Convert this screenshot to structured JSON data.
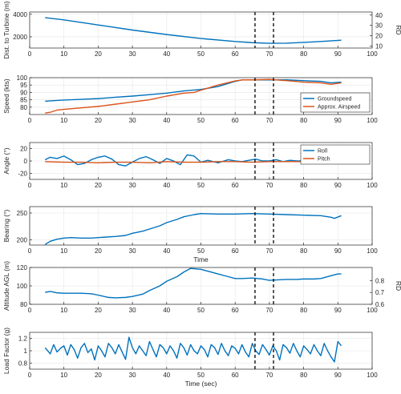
{
  "colors": {
    "series1": "#0072BD",
    "series2": "#D95319",
    "marker": "#000000",
    "grid": "#E6E6E6",
    "axes": "#262626"
  },
  "chart_data": [
    {
      "type": "line",
      "ylabel": "Dist. to Turbine (m)",
      "y2label": "RD",
      "xlim": [
        0,
        100
      ],
      "ylim": [
        1000,
        4200
      ],
      "y2lim": [
        8,
        43
      ],
      "xticks": [
        0,
        10,
        20,
        30,
        40,
        50,
        60,
        70,
        80,
        90,
        100
      ],
      "yticks": [
        2000,
        4000
      ],
      "y2ticks": [
        10,
        20,
        30,
        40
      ],
      "grid": true,
      "vlines": [
        65.8,
        71.2
      ],
      "series": [
        {
          "x": [
            4.5,
            10,
            20,
            30,
            40,
            50,
            60,
            65,
            70,
            75,
            80,
            85,
            91
          ],
          "y": [
            3700,
            3500,
            3050,
            2600,
            2200,
            1850,
            1580,
            1480,
            1420,
            1430,
            1500,
            1580,
            1700
          ]
        }
      ]
    },
    {
      "type": "line",
      "ylabel": "Speed (kts)",
      "xlim": [
        0,
        100
      ],
      "ylim": [
        75,
        100
      ],
      "xticks": [
        0,
        10,
        20,
        30,
        40,
        50,
        60,
        70,
        80,
        90,
        100
      ],
      "yticks": [
        80,
        85,
        90,
        95,
        100
      ],
      "grid": true,
      "legend": "bottom-right",
      "vlines": [
        65.8,
        71.2
      ],
      "series": [
        {
          "name": "Groundspeed",
          "x": [
            4.5,
            6,
            10,
            15,
            20,
            25,
            30,
            35,
            40,
            45,
            50,
            55,
            60,
            62,
            65,
            70,
            75,
            80,
            85,
            88,
            91
          ],
          "y": [
            84,
            84.3,
            84.8,
            85.3,
            85.8,
            86.7,
            87.5,
            88.5,
            89.5,
            91,
            92,
            94,
            97.5,
            98.5,
            98.5,
            98.5,
            98.5,
            98,
            97.5,
            96.5,
            97
          ]
        },
        {
          "name": "Approx. Airspeed",
          "x": [
            4.5,
            6,
            8,
            10,
            15,
            20,
            25,
            30,
            35,
            40,
            45,
            48,
            50,
            55,
            60,
            62,
            65,
            70,
            75,
            80,
            85,
            88,
            91
          ],
          "y": [
            76,
            76.5,
            78,
            78.5,
            79.5,
            80.5,
            82,
            83.5,
            85,
            87.5,
            89.5,
            90,
            91.5,
            95,
            97.8,
            98.5,
            98.5,
            98.8,
            98,
            97,
            96.5,
            95.5,
            96.5
          ]
        }
      ]
    },
    {
      "type": "line",
      "ylabel": "Angle (°)",
      "xlim": [
        0,
        100
      ],
      "ylim": [
        -30,
        30
      ],
      "xticks": [
        0,
        10,
        20,
        30,
        40,
        50,
        60,
        70,
        80,
        90,
        100
      ],
      "yticks": [
        -20,
        0,
        20
      ],
      "grid": true,
      "legend": "top-right",
      "vlines": [
        65.8,
        71.2
      ],
      "series": [
        {
          "name": "Roll",
          "x": [
            4.5,
            6,
            8,
            10,
            12,
            14,
            16,
            18,
            20,
            22,
            24,
            26,
            28,
            30,
            32,
            34,
            36,
            38,
            40,
            42,
            44,
            46,
            48,
            50,
            52,
            55,
            58,
            60,
            62,
            64,
            66,
            68,
            70,
            72,
            74,
            76,
            78,
            80,
            82,
            84,
            86,
            87,
            88,
            89,
            90,
            91
          ],
          "y": [
            2,
            6,
            4,
            8,
            2,
            -6,
            -4,
            2,
            6,
            8,
            3,
            -6,
            -8,
            -2,
            4,
            7,
            2,
            -4,
            4,
            0,
            -6,
            10,
            8,
            -2,
            1,
            -3,
            2,
            0,
            -1,
            1,
            3,
            0,
            0,
            2,
            -1,
            1,
            0,
            0,
            1,
            -1,
            1,
            -2,
            0,
            6,
            15,
            24
          ]
        },
        {
          "name": "Pitch",
          "x": [
            4.5,
            10,
            15,
            20,
            25,
            30,
            35,
            40,
            45,
            50,
            55,
            60,
            65,
            70,
            75,
            80,
            85,
            90,
            91
          ],
          "y": [
            -1,
            -2,
            -2,
            -3,
            -2,
            -2,
            -3,
            -1,
            -2,
            -2,
            -1,
            -1,
            -2,
            -1,
            -1,
            -1,
            -1,
            -2,
            -3
          ]
        }
      ]
    },
    {
      "type": "line",
      "ylabel": "Bearing (°)",
      "xlabel": "Time",
      "xlim": [
        0,
        100
      ],
      "ylim": [
        190,
        262
      ],
      "xticks": [
        0,
        10,
        20,
        30,
        40,
        50,
        60,
        70,
        80,
        90,
        100
      ],
      "yticks": [
        200,
        250
      ],
      "grid": true,
      "vlines": [
        65.8,
        71.2
      ],
      "series": [
        {
          "x": [
            4.5,
            6,
            8,
            10,
            12,
            15,
            18,
            20,
            25,
            28,
            30,
            33,
            35,
            38,
            40,
            43,
            45,
            48,
            50,
            55,
            60,
            65,
            70,
            75,
            80,
            85,
            88,
            89,
            91
          ],
          "y": [
            191,
            197,
            201,
            203,
            204,
            203,
            203,
            204,
            206,
            208,
            212,
            216,
            220,
            226,
            232,
            238,
            243,
            247,
            249,
            248,
            248,
            249,
            248,
            247,
            246,
            245,
            242,
            240,
            245
          ]
        }
      ]
    },
    {
      "type": "line",
      "ylabel": "Altitude AGL (m)",
      "y2label": "RD",
      "xlim": [
        0,
        100
      ],
      "ylim": [
        80,
        120
      ],
      "y2lim": [
        0.6,
        0.91
      ],
      "xticks": [
        0,
        10,
        20,
        30,
        40,
        50,
        60,
        70,
        80,
        90,
        100
      ],
      "yticks": [
        80,
        100,
        120
      ],
      "y2ticks": [
        0.6,
        0.7,
        0.8
      ],
      "grid": true,
      "vlines": [
        65.8,
        71.2
      ],
      "series": [
        {
          "x": [
            4.5,
            6,
            8,
            10,
            13,
            15,
            18,
            20,
            23,
            25,
            28,
            30,
            33,
            35,
            38,
            40,
            43,
            45,
            47,
            50,
            55,
            58,
            60,
            62,
            65,
            68,
            70,
            72,
            75,
            78,
            80,
            83,
            85,
            88,
            90,
            91
          ],
          "y": [
            93,
            94,
            92.5,
            92,
            92,
            92,
            91.5,
            90,
            87.5,
            87,
            87.5,
            88.5,
            91,
            95,
            100,
            105,
            110,
            115,
            119,
            118,
            113,
            110,
            108,
            108,
            108.5,
            107.5,
            106,
            106.5,
            107,
            107,
            107.5,
            107.5,
            108,
            111,
            113,
            113
          ]
        }
      ]
    },
    {
      "type": "line",
      "ylabel": "Load Factor (g)",
      "xlabel": "Time (sec)",
      "xlim": [
        0,
        100
      ],
      "ylim": [
        0.7,
        1.3
      ],
      "xticks": [
        0,
        10,
        20,
        30,
        40,
        50,
        60,
        70,
        80,
        90,
        100
      ],
      "yticks": [
        0.8,
        1,
        1.2
      ],
      "grid": true,
      "vlines": [
        65.8,
        71.2
      ],
      "series": [
        {
          "x": [
            4.5,
            6,
            7,
            8,
            9,
            10,
            11,
            12,
            13,
            14,
            15,
            16,
            17,
            18,
            19,
            20,
            21,
            22,
            23,
            24,
            25,
            26,
            27,
            28,
            29,
            30,
            31,
            32,
            33,
            34,
            35,
            36,
            37,
            38,
            39,
            40,
            41,
            42,
            43,
            44,
            45,
            46,
            47,
            48,
            49,
            50,
            51,
            52,
            53,
            54,
            55,
            56,
            57,
            58,
            59,
            60,
            61,
            62,
            63,
            64,
            65,
            66,
            67,
            68,
            69,
            70,
            71,
            72,
            73,
            74,
            75,
            76,
            77,
            78,
            79,
            80,
            81,
            82,
            83,
            84,
            85,
            86,
            87,
            88,
            89,
            90,
            91
          ],
          "y": [
            1.05,
            0.95,
            1.1,
            0.98,
            1.04,
            1.08,
            0.93,
            1.1,
            1.02,
            0.88,
            1.05,
            1.12,
            0.97,
            1.03,
            0.85,
            1.08,
            1.0,
            0.9,
            1.12,
            1.05,
            0.95,
            1.1,
            0.98,
            0.86,
            1.22,
            1.05,
            0.95,
            1.08,
            1.0,
            0.92,
            1.15,
            1.02,
            0.9,
            1.1,
            1.05,
            0.95,
            1.08,
            1.0,
            0.88,
            1.12,
            1.05,
            0.93,
            1.1,
            1.0,
            0.95,
            1.08,
            1.02,
            0.9,
            1.1,
            1.05,
            0.94,
            1.12,
            1.0,
            0.92,
            1.08,
            1.04,
            0.95,
            1.1,
            0.98,
            0.9,
            1.12,
            1.0,
            0.94,
            1.1,
            1.02,
            0.93,
            1.08,
            1.0,
            0.85,
            1.1,
            1.05,
            0.96,
            1.12,
            1.0,
            0.9,
            1.08,
            1.02,
            0.95,
            1.1,
            1.0,
            0.92,
            1.12,
            1.0,
            0.9,
            0.82,
            1.15,
            1.08
          ]
        }
      ]
    }
  ]
}
